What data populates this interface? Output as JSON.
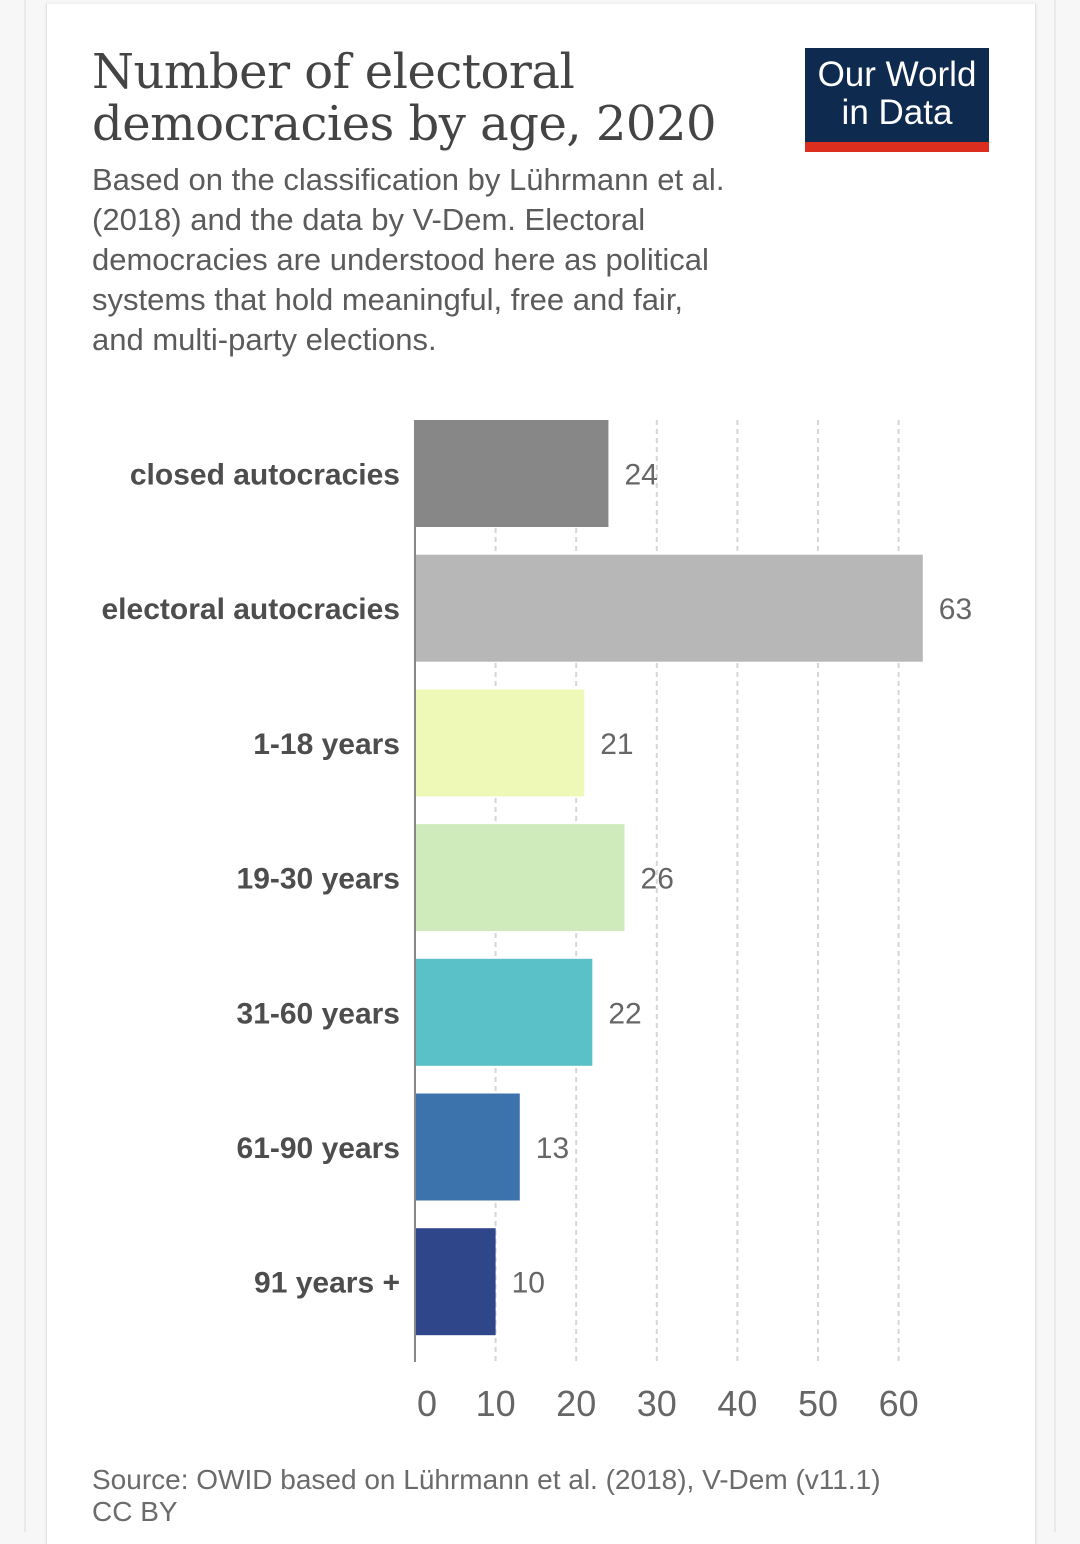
{
  "header": {
    "title": "Number of electoral democracies by age, 2020",
    "subtitle": "Based on the classification by Lührmann et al. (2018) and the data by V-Dem. Electoral democracies are understood here as political systems that hold meaningful, free and fair, and multi-party elections."
  },
  "logo": {
    "line1": "Our World",
    "line2": "in Data",
    "bg_color": "#0f2a4f",
    "bar_color": "#dc2e1f"
  },
  "footer": {
    "source": "Source: OWID based on Lührmann et al. (2018), V-Dem (v11.1)",
    "license": "CC BY"
  },
  "chart_data": {
    "type": "bar",
    "orientation": "horizontal",
    "categories": [
      "closed autocracies",
      "electoral autocracies",
      "1-18 years",
      "19-30 years",
      "31-60 years",
      "61-90 years",
      "91 years +"
    ],
    "values": [
      24,
      63,
      21,
      26,
      22,
      13,
      10
    ],
    "colors": [
      "#878787",
      "#b7b7b7",
      "#eef8b7",
      "#cfebbc",
      "#59c1c7",
      "#3d73ad",
      "#30468a"
    ],
    "x_ticks": [
      0,
      10,
      20,
      30,
      40,
      50,
      60
    ],
    "xlim": [
      0,
      63
    ],
    "grid": true,
    "title": "Number of electoral democracies by age, 2020",
    "xlabel": "",
    "ylabel": ""
  }
}
